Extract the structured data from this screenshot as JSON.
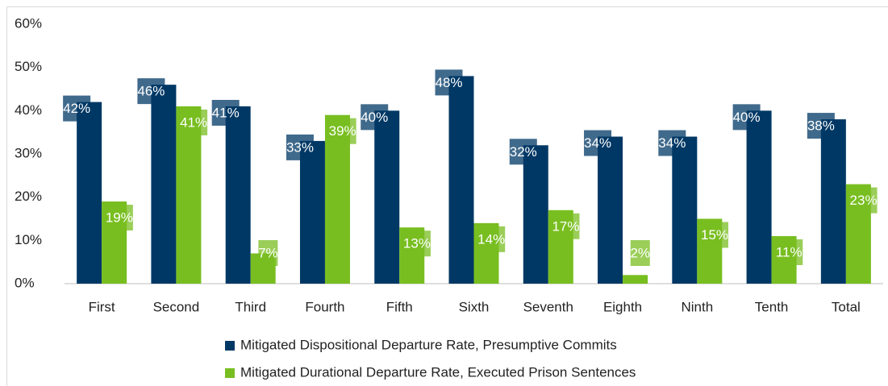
{
  "chart_data": {
    "type": "bar",
    "categories": [
      "First",
      "Second",
      "Third",
      "Fourth",
      "Fifth",
      "Sixth",
      "Seventh",
      "Eighth",
      "Ninth",
      "Tenth",
      "Total"
    ],
    "series": [
      {
        "name": "Mitigated Dispositional Departure Rate, Presumptive Commits",
        "color": "#003865",
        "values": [
          42,
          46,
          41,
          33,
          40,
          48,
          32,
          34,
          34,
          40,
          38
        ],
        "value_labels": [
          "42%",
          "46%",
          "41%",
          "33%",
          "40%",
          "48%",
          "32%",
          "34%",
          "34%",
          "40%",
          "38%"
        ]
      },
      {
        "name": "Mitigated Durational Departure Rate, Executed Prison Sentences",
        "color": "#78be20",
        "values": [
          19,
          41,
          7,
          39,
          13,
          14,
          17,
          2,
          15,
          11,
          23
        ],
        "value_labels": [
          "19%",
          "41%",
          "7%",
          "39%",
          "13%",
          "14%",
          "17%",
          "2%",
          "15%",
          "11%",
          "23%"
        ]
      }
    ],
    "ylim": [
      0,
      60
    ],
    "yticks": [
      {
        "value": 0,
        "label": "0%"
      },
      {
        "value": 10,
        "label": "10%"
      },
      {
        "value": 20,
        "label": "20%"
      },
      {
        "value": 30,
        "label": "30%"
      },
      {
        "value": 40,
        "label": "40%"
      },
      {
        "value": 50,
        "label": "50%"
      },
      {
        "value": 60,
        "label": "60%"
      }
    ],
    "legend": "bottom"
  }
}
